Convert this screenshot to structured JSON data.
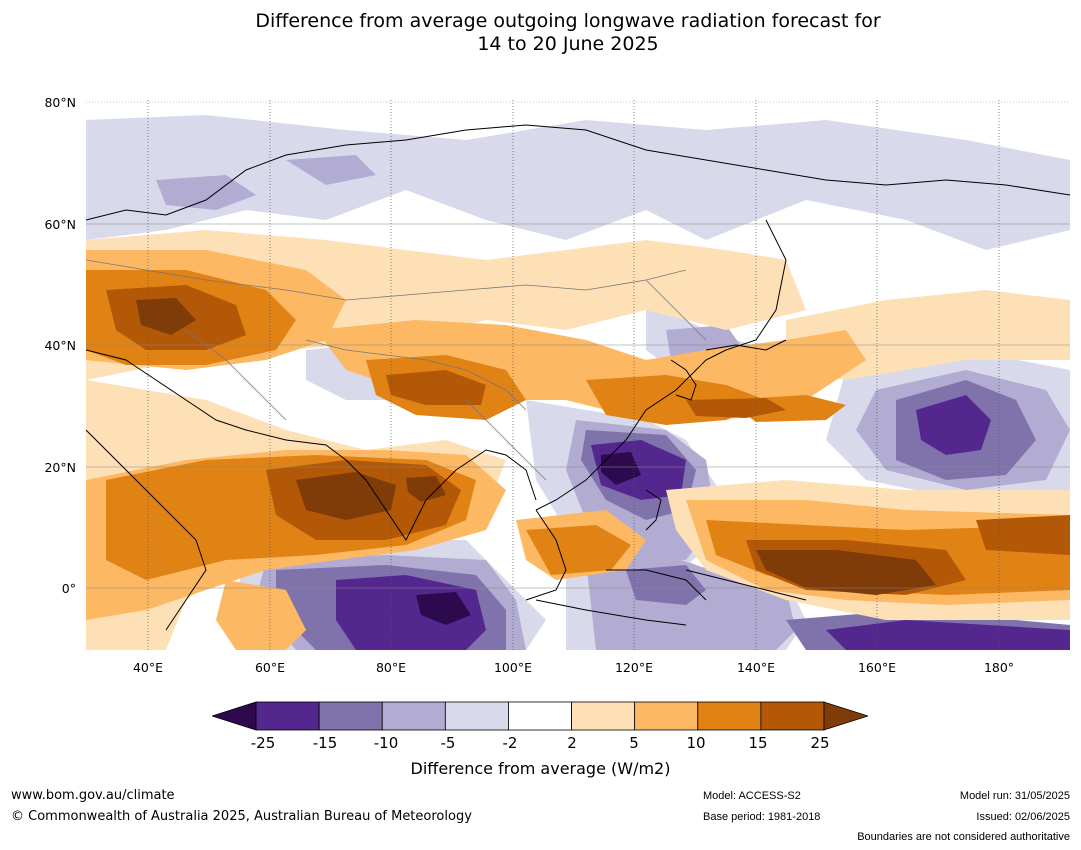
{
  "title_line1": "Difference from average outgoing longwave radiation forecast for",
  "title_line2": "14 to 20 June 2025",
  "lat_labels": [
    "80°N",
    "60°N",
    "40°N",
    "20°N",
    "0°"
  ],
  "lon_labels": [
    "40°E",
    "60°E",
    "80°E",
    "100°E",
    "120°E",
    "140°E",
    "160°E",
    "180°"
  ],
  "colorbar": {
    "label": "Difference from average (W/m2)",
    "ticks": [
      "-25",
      "-15",
      "-10",
      "-5",
      "-2",
      "2",
      "5",
      "10",
      "15",
      "25"
    ],
    "colors": [
      "#2d0a4e",
      "#54278f",
      "#8073ac",
      "#b2abd2",
      "#d8daeb",
      "#ffffff",
      "#fee0b6",
      "#fdb863",
      "#e08214",
      "#b35806",
      "#7f3b08"
    ]
  },
  "footer": {
    "url": "www.bom.gov.au/climate",
    "copyright": "© Commonwealth of Australia 2025, Australian Bureau of Meteorology",
    "model": "Model: ACCESS-S2",
    "base_period": "Base period: 1981-2018",
    "model_run": "Model run: 31/05/2025",
    "issued": "Issued: 02/06/2025",
    "disclaimer": "Boundaries are not considered authoritative"
  }
}
